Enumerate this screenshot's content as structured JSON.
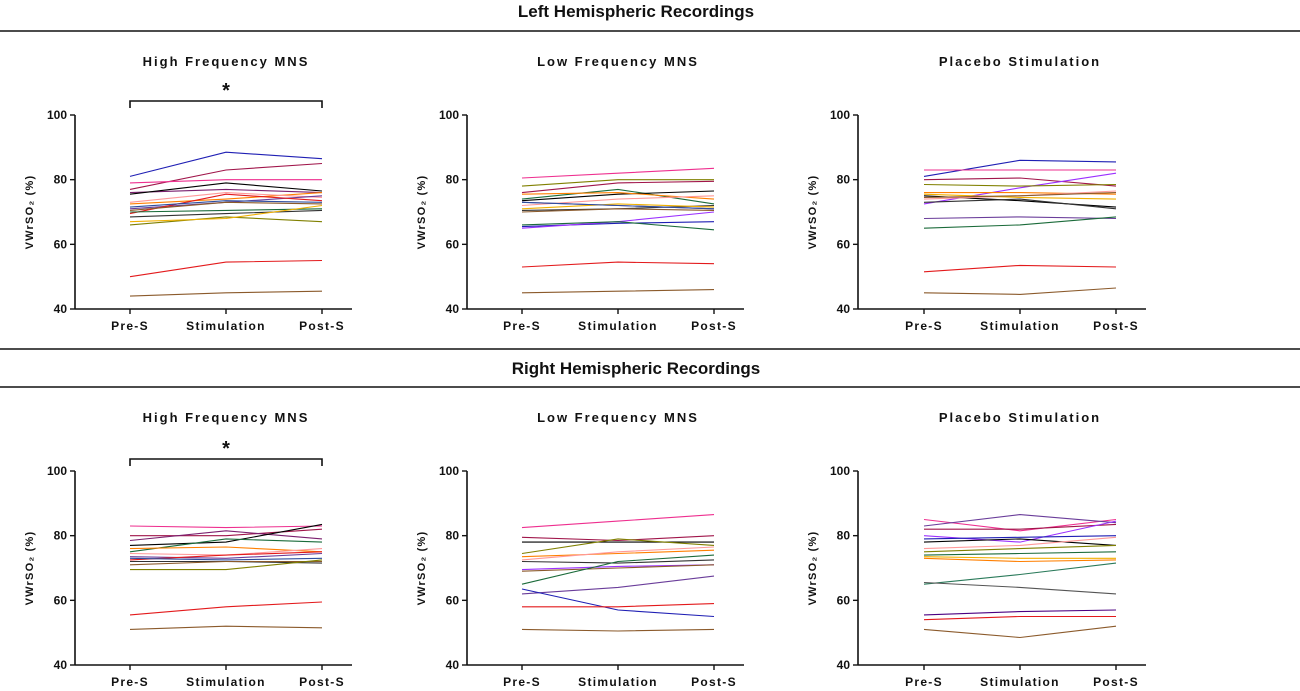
{
  "sections": [
    {
      "title": "Left Hemispheric Recordings"
    },
    {
      "title": "Right Hemispheric Recordings"
    }
  ],
  "chart_data": [
    {
      "type": "line",
      "section": "Left Hemispheric Recordings",
      "title": "High Frequency MNS",
      "categories": [
        "Pre-S",
        "Stimulation",
        "Post-S"
      ],
      "ylabel": "VWrSO₂ (%)",
      "ylim": [
        40,
        100
      ],
      "yticks": [
        40,
        60,
        80,
        100
      ],
      "significance": "*",
      "series": [
        {
          "color": "#1f1fb4",
          "values": [
            81,
            88.5,
            86.5
          ]
        },
        {
          "color": "#a0154a",
          "values": [
            77,
            83,
            85
          ]
        },
        {
          "color": "#ee2f8f",
          "values": [
            79,
            80,
            80
          ]
        },
        {
          "color": "#7a1f6e",
          "values": [
            76,
            77,
            76
          ]
        },
        {
          "color": "#000000",
          "values": [
            75.5,
            79,
            76.5
          ]
        },
        {
          "color": "#ff7f00",
          "values": [
            72.5,
            74,
            76
          ]
        },
        {
          "color": "#ff9999",
          "values": [
            73,
            76,
            74.5
          ]
        },
        {
          "color": "#6a3d9a",
          "values": [
            71,
            73,
            75
          ]
        },
        {
          "color": "#e31a1c",
          "values": [
            69.5,
            75.5,
            73.5
          ]
        },
        {
          "color": "#8b5a2b",
          "values": [
            70.5,
            73,
            72.5
          ]
        },
        {
          "color": "#2f4f9f",
          "values": [
            71.5,
            73.5,
            73
          ]
        },
        {
          "color": "#1b6b3a",
          "values": [
            70,
            70.5,
            71
          ]
        },
        {
          "color": "#333333",
          "values": [
            68.5,
            69.5,
            70.5
          ]
        },
        {
          "color": "#808000",
          "values": [
            66,
            68.5,
            67
          ]
        },
        {
          "color": "#f0b000",
          "values": [
            67,
            68,
            72
          ]
        },
        {
          "color": "#e31a1c",
          "values": [
            50,
            54.5,
            55
          ]
        },
        {
          "color": "#8b5a2b",
          "values": [
            44,
            45,
            45.5
          ]
        }
      ]
    },
    {
      "type": "line",
      "section": "Left Hemispheric Recordings",
      "title": "Low Frequency MNS",
      "categories": [
        "Pre-S",
        "Stimulation",
        "Post-S"
      ],
      "ylabel": "VWrSO₂ (%)",
      "ylim": [
        40,
        100
      ],
      "yticks": [
        40,
        60,
        80,
        100
      ],
      "series": [
        {
          "color": "#ee2f8f",
          "values": [
            80.5,
            82,
            83.5
          ]
        },
        {
          "color": "#808000",
          "values": [
            78,
            80,
            80
          ]
        },
        {
          "color": "#a0154a",
          "values": [
            76,
            79,
            79.5
          ]
        },
        {
          "color": "#1b6b3a",
          "values": [
            74,
            77,
            72.5
          ]
        },
        {
          "color": "#000000",
          "values": [
            73.5,
            75.5,
            76.5
          ]
        },
        {
          "color": "#ff7f00",
          "values": [
            75.5,
            76,
            74
          ]
        },
        {
          "color": "#ff9999",
          "values": [
            72,
            74,
            75
          ]
        },
        {
          "color": "#6a3d9a",
          "values": [
            73,
            72,
            71
          ]
        },
        {
          "color": "#333333",
          "values": [
            70.5,
            71,
            72
          ]
        },
        {
          "color": "#f0b000",
          "values": [
            71,
            72.5,
            71.5
          ]
        },
        {
          "color": "#8b5a2b",
          "values": [
            70,
            71,
            70.5
          ]
        },
        {
          "color": "#1f1fb4",
          "values": [
            65.5,
            66.5,
            67
          ]
        },
        {
          "color": "#9b30ff",
          "values": [
            65,
            67,
            70
          ]
        },
        {
          "color": "#1b6b3a",
          "values": [
            66,
            67,
            64.5
          ]
        },
        {
          "color": "#2f4f9f",
          "values": [
            73,
            72,
            71
          ]
        },
        {
          "color": "#e31a1c",
          "values": [
            53,
            54.5,
            54
          ]
        },
        {
          "color": "#8b5a2b",
          "values": [
            45,
            45.5,
            46
          ]
        }
      ]
    },
    {
      "type": "line",
      "section": "Left Hemispheric Recordings",
      "title": "Placebo Stimulation",
      "categories": [
        "Pre-S",
        "Stimulation",
        "Post-S"
      ],
      "ylabel": "VWrSO₂ (%)",
      "ylim": [
        40,
        100
      ],
      "yticks": [
        40,
        60,
        80,
        100
      ],
      "series": [
        {
          "color": "#1f1fb4",
          "values": [
            81,
            86,
            85.5
          ]
        },
        {
          "color": "#ee2f8f",
          "values": [
            83,
            83,
            83
          ]
        },
        {
          "color": "#a0154a",
          "values": [
            80,
            80.5,
            78
          ]
        },
        {
          "color": "#9b30ff",
          "values": [
            72.5,
            77.5,
            82
          ]
        },
        {
          "color": "#808000",
          "values": [
            78.5,
            78,
            78.5
          ]
        },
        {
          "color": "#000000",
          "values": [
            75,
            73.5,
            71.5
          ]
        },
        {
          "color": "#ff7f00",
          "values": [
            76,
            76,
            75.5
          ]
        },
        {
          "color": "#ff9999",
          "values": [
            74,
            75,
            76.5
          ]
        },
        {
          "color": "#333333",
          "values": [
            73,
            74,
            71
          ]
        },
        {
          "color": "#f0b000",
          "values": [
            75.5,
            74.5,
            74
          ]
        },
        {
          "color": "#8b5a2b",
          "values": [
            74.5,
            75,
            76
          ]
        },
        {
          "color": "#6a3d9a",
          "values": [
            68,
            68.5,
            68
          ]
        },
        {
          "color": "#1b6b3a",
          "values": [
            65,
            66,
            68.5
          ]
        },
        {
          "color": "#e31a1c",
          "values": [
            51.5,
            53.5,
            53
          ]
        },
        {
          "color": "#8b5a2b",
          "values": [
            45,
            44.5,
            46.5
          ]
        }
      ]
    },
    {
      "type": "line",
      "section": "Right Hemispheric Recordings",
      "title": "High Frequency MNS",
      "categories": [
        "Pre-S",
        "Stimulation",
        "Post-S"
      ],
      "ylabel": "VWrSO₂ (%)",
      "ylim": [
        40,
        100
      ],
      "yticks": [
        40,
        60,
        80,
        100
      ],
      "significance": "*",
      "series": [
        {
          "color": "#ee2f8f",
          "values": [
            83,
            82.5,
            83
          ]
        },
        {
          "color": "#a0154a",
          "values": [
            80,
            80,
            82
          ]
        },
        {
          "color": "#7a1f6e",
          "values": [
            78.5,
            81.5,
            79
          ]
        },
        {
          "color": "#000000",
          "values": [
            77,
            78,
            83.5
          ]
        },
        {
          "color": "#1b6b3a",
          "values": [
            75,
            79,
            78
          ]
        },
        {
          "color": "#ff7f00",
          "values": [
            76,
            76.5,
            75
          ]
        },
        {
          "color": "#ff9999",
          "values": [
            74.5,
            74,
            76
          ]
        },
        {
          "color": "#6a3d9a",
          "values": [
            73.5,
            73,
            74.5
          ]
        },
        {
          "color": "#e31a1c",
          "values": [
            72.5,
            74,
            75
          ]
        },
        {
          "color": "#2f4f9f",
          "values": [
            73,
            72.5,
            73
          ]
        },
        {
          "color": "#333333",
          "values": [
            72,
            72,
            71.5
          ]
        },
        {
          "color": "#8b5a2b",
          "values": [
            71,
            72,
            72
          ]
        },
        {
          "color": "#808000",
          "values": [
            69.5,
            69.5,
            72.5
          ]
        },
        {
          "color": "#e31a1c",
          "values": [
            55.5,
            58,
            59.5
          ]
        },
        {
          "color": "#8b5a2b",
          "values": [
            51,
            52,
            51.5
          ]
        }
      ]
    },
    {
      "type": "line",
      "section": "Right Hemispheric Recordings",
      "title": "Low Frequency MNS",
      "categories": [
        "Pre-S",
        "Stimulation",
        "Post-S"
      ],
      "ylabel": "VWrSO₂ (%)",
      "ylim": [
        40,
        100
      ],
      "yticks": [
        40,
        60,
        80,
        100
      ],
      "series": [
        {
          "color": "#ee2f8f",
          "values": [
            82.5,
            84.5,
            86.5
          ]
        },
        {
          "color": "#a0154a",
          "values": [
            79.5,
            78.5,
            80
          ]
        },
        {
          "color": "#000000",
          "values": [
            78,
            78,
            78
          ]
        },
        {
          "color": "#808000",
          "values": [
            74.5,
            79,
            77
          ]
        },
        {
          "color": "#ff7f00",
          "values": [
            73.5,
            74.5,
            75.5
          ]
        },
        {
          "color": "#ff9999",
          "values": [
            72.5,
            75,
            76.5
          ]
        },
        {
          "color": "#333333",
          "values": [
            72,
            71.5,
            72.5
          ]
        },
        {
          "color": "#9b30ff",
          "values": [
            69.5,
            70.5,
            71
          ]
        },
        {
          "color": "#8b5a2b",
          "values": [
            69,
            70,
            71
          ]
        },
        {
          "color": "#1b6b3a",
          "values": [
            65,
            72,
            74
          ]
        },
        {
          "color": "#6a3d9a",
          "values": [
            62,
            64,
            67.5
          ]
        },
        {
          "color": "#1f1fb4",
          "values": [
            63.5,
            57,
            55
          ]
        },
        {
          "color": "#e31a1c",
          "values": [
            58,
            58,
            59
          ]
        },
        {
          "color": "#8b5a2b",
          "values": [
            51,
            50.5,
            51
          ]
        }
      ]
    },
    {
      "type": "line",
      "section": "Right Hemispheric Recordings",
      "title": "Placebo Stimulation",
      "categories": [
        "Pre-S",
        "Stimulation",
        "Post-S"
      ],
      "ylabel": "VWrSO₂ (%)",
      "ylim": [
        40,
        100
      ],
      "yticks": [
        40,
        60,
        80,
        100
      ],
      "series": [
        {
          "color": "#ee2f8f",
          "values": [
            85,
            81.5,
            85
          ]
        },
        {
          "color": "#6a3d9a",
          "values": [
            83,
            86.5,
            84
          ]
        },
        {
          "color": "#a0154a",
          "values": [
            82,
            82,
            83.5
          ]
        },
        {
          "color": "#9b30ff",
          "values": [
            80,
            78,
            84.5
          ]
        },
        {
          "color": "#000000",
          "values": [
            78,
            79,
            77
          ]
        },
        {
          "color": "#1f1fb4",
          "values": [
            79,
            79.5,
            80
          ]
        },
        {
          "color": "#ff9999",
          "values": [
            76,
            77,
            79.5
          ]
        },
        {
          "color": "#808000",
          "values": [
            75,
            76,
            77
          ]
        },
        {
          "color": "#1b6b3a",
          "values": [
            74,
            74.5,
            75
          ]
        },
        {
          "color": "#f0b000",
          "values": [
            73.5,
            73,
            73
          ]
        },
        {
          "color": "#ff7f00",
          "values": [
            73,
            72,
            72.5
          ]
        },
        {
          "color": "#2a7a5a",
          "values": [
            65,
            68,
            71.5
          ]
        },
        {
          "color": "#555555",
          "values": [
            65.5,
            64,
            62
          ]
        },
        {
          "color": "#4b0082",
          "values": [
            55.5,
            56.5,
            57
          ]
        },
        {
          "color": "#e31a1c",
          "values": [
            54,
            55,
            55
          ]
        },
        {
          "color": "#8b5a2b",
          "values": [
            51,
            48.5,
            52
          ]
        }
      ]
    }
  ]
}
